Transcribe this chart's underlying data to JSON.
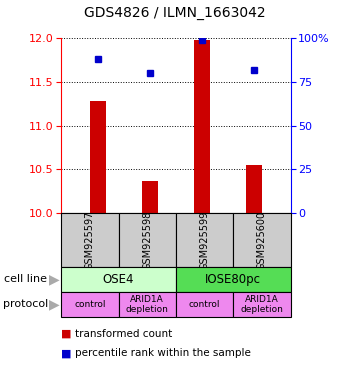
{
  "title": "GDS4826 / ILMN_1663042",
  "samples": [
    "GSM925597",
    "GSM925598",
    "GSM925599",
    "GSM925600"
  ],
  "bar_values": [
    11.28,
    10.37,
    11.98,
    10.55
  ],
  "dot_values": [
    88,
    80,
    99,
    82
  ],
  "ylim_left": [
    10,
    12
  ],
  "ylim_right": [
    0,
    100
  ],
  "yticks_left": [
    10,
    10.5,
    11,
    11.5,
    12
  ],
  "yticks_right": [
    0,
    25,
    50,
    75,
    100
  ],
  "ytick_labels_right": [
    "0",
    "25",
    "50",
    "75",
    "100%"
  ],
  "bar_color": "#cc0000",
  "dot_color": "#0000cc",
  "cell_line_labels": [
    "OSE4",
    "IOSE80pc"
  ],
  "cell_line_colors": [
    "#ccffcc",
    "#55dd55"
  ],
  "cell_line_spans": [
    [
      0,
      2
    ],
    [
      2,
      4
    ]
  ],
  "protocol_labels": [
    "control",
    "ARID1A\ndepletion",
    "control",
    "ARID1A\ndepletion"
  ],
  "protocol_color": "#ee88ee",
  "sample_box_color": "#cccccc",
  "legend_bar_label": "transformed count",
  "legend_dot_label": "percentile rank within the sample",
  "cell_line_row_label": "cell line",
  "protocol_row_label": "protocol",
  "arrow_color": "#aaaaaa",
  "bar_width": 0.3,
  "marker_size": 5
}
